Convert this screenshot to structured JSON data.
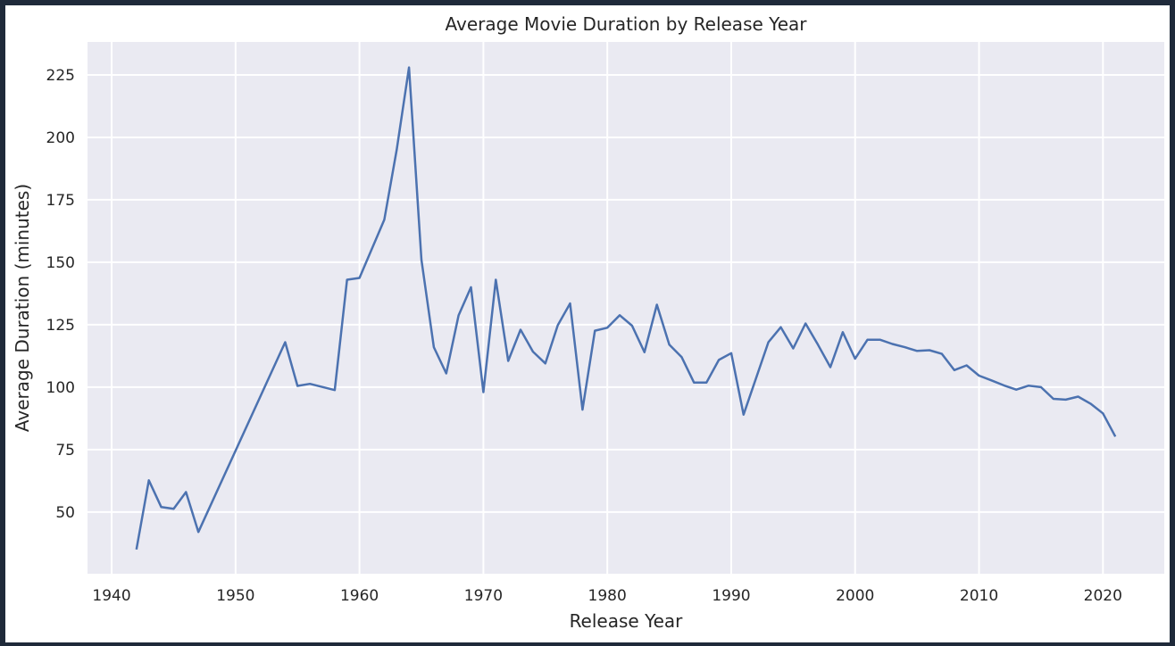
{
  "chart_data": {
    "type": "line",
    "title": "Average Movie Duration by Release Year",
    "xlabel": "Release Year",
    "ylabel": "Average Duration (minutes)",
    "xlim": [
      1938.05,
      2024.95
    ],
    "ylim": [
      25.3,
      238.2
    ],
    "xticks": [
      1940,
      1950,
      1960,
      1970,
      1980,
      1990,
      2000,
      2010,
      2020
    ],
    "yticks": [
      50,
      75,
      100,
      125,
      150,
      175,
      200,
      225
    ],
    "grid": true,
    "legend": "none",
    "colors": {
      "line": "#4c72b0",
      "plot_bg": "#eaeaf2",
      "grid": "#ffffff"
    },
    "x": [
      1942,
      1943,
      1944,
      1945,
      1946,
      1947,
      1954,
      1955,
      1956,
      1958,
      1959,
      1960,
      1962,
      1963,
      1964,
      1965,
      1966,
      1967,
      1968,
      1969,
      1970,
      1971,
      1972,
      1973,
      1974,
      1975,
      1976,
      1977,
      1978,
      1979,
      1980,
      1981,
      1982,
      1983,
      1984,
      1985,
      1986,
      1987,
      1988,
      1989,
      1990,
      1991,
      1993,
      1994,
      1995,
      1996,
      1997,
      1998,
      1999,
      2000,
      2001,
      2002,
      2003,
      2004,
      2005,
      2006,
      2007,
      2008,
      2009,
      2010,
      2011,
      2012,
      2013,
      2014,
      2015,
      2016,
      2017,
      2018,
      2019,
      2020,
      2021
    ],
    "series": [
      {
        "values": [
          35,
          62.7,
          52,
          51.3,
          58,
          42,
          118,
          100.5,
          101.3,
          98.8,
          143,
          143.7,
          167,
          195,
          228,
          151,
          116,
          105.5,
          128.7,
          140,
          98,
          143,
          110.5,
          123,
          114.2,
          109.5,
          124.8,
          133.5,
          91,
          122.6,
          123.8,
          128.8,
          124.6,
          114,
          133,
          117,
          112,
          101.8,
          101.8,
          110.9,
          113.6,
          89,
          118,
          124,
          115.5,
          125.5,
          117,
          108,
          122,
          111.4,
          119,
          119,
          117.3,
          116,
          114.5,
          114.8,
          113.3,
          106.8,
          108.7,
          104.6,
          102.7,
          100.7,
          99,
          100.6,
          100,
          95.3,
          95,
          96.2,
          93.4,
          89.5,
          80.2
        ]
      }
    ]
  }
}
